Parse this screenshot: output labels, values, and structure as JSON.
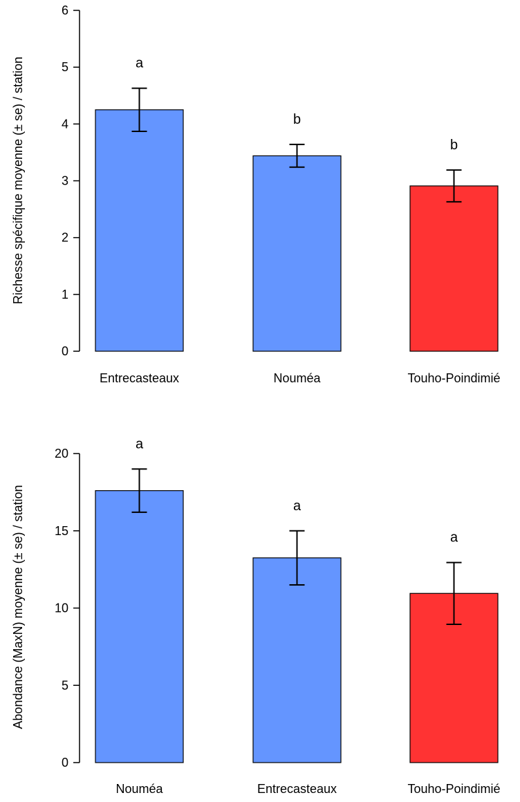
{
  "chart_data": [
    {
      "type": "bar",
      "categories": [
        "Entrecasteaux",
        "Nouméa",
        "Touho-Poindimié"
      ],
      "values": [
        4.25,
        3.44,
        2.91
      ],
      "error": [
        0.38,
        0.2,
        0.28
      ],
      "significance": [
        "a",
        "b",
        "b"
      ],
      "bar_colors": [
        "#6495ff",
        "#6495ff",
        "#ff3333"
      ],
      "ylabel": "Richesse spécifique moyenne (± se) / station",
      "xlabel": "",
      "ylim": [
        0,
        6
      ],
      "yticks": [
        "0",
        "1",
        "2",
        "3",
        "4",
        "5",
        "6"
      ]
    },
    {
      "type": "bar",
      "categories": [
        "Nouméa",
        "Entrecasteaux",
        "Touho-Poindimié"
      ],
      "values": [
        17.6,
        13.25,
        10.95
      ],
      "error": [
        1.4,
        1.75,
        2.0
      ],
      "significance": [
        "a",
        "a",
        "a"
      ],
      "bar_colors": [
        "#6495ff",
        "#6495ff",
        "#ff3333"
      ],
      "ylabel": "Abondance (MaxN) moyenne (± se) / station",
      "xlabel": "",
      "ylim": [
        0,
        20
      ],
      "yticks": [
        "0",
        "5",
        "10",
        "15",
        "20"
      ]
    }
  ]
}
